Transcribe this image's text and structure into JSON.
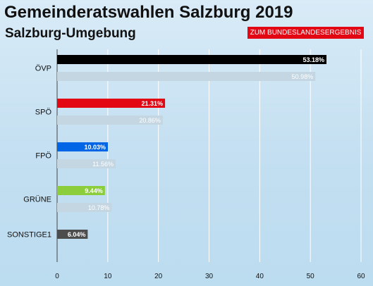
{
  "header": {
    "title": "Gemeinderatswahlen Salzburg 2019",
    "subtitle": "Salzburg-Umgebung",
    "result_button_label": "ZUM BUNDESLANDESERGEBNIS"
  },
  "chart_data": {
    "type": "bar",
    "orientation": "horizontal",
    "title": "Gemeinderatswahlen Salzburg 2019",
    "subtitle": "Salzburg-Umgebung",
    "categories": [
      "ÖVP",
      "SPÖ",
      "FPÖ",
      "GRÜNE",
      "SONSTIGE1"
    ],
    "series": [
      {
        "values": [
          53.18,
          21.31,
          10.03,
          9.44,
          6.04
        ],
        "labels": [
          "53.18%",
          "21.31%",
          "10.03%",
          "9.44%",
          "6.04%"
        ],
        "colors": [
          "#000000",
          "#e30613",
          "#0066e6",
          "#8ccd3c",
          "#4d4d4d"
        ]
      },
      {
        "values": [
          50.98,
          20.86,
          11.56,
          10.78,
          null
        ],
        "labels": [
          "50.98%",
          "20.86%",
          "11.56%",
          "10.78%",
          ""
        ],
        "color": "#c4d6e2"
      }
    ],
    "xlim": [
      0,
      60
    ],
    "xticks": [
      "0",
      "10",
      "20",
      "30",
      "40",
      "50",
      "60"
    ],
    "grid": true
  }
}
